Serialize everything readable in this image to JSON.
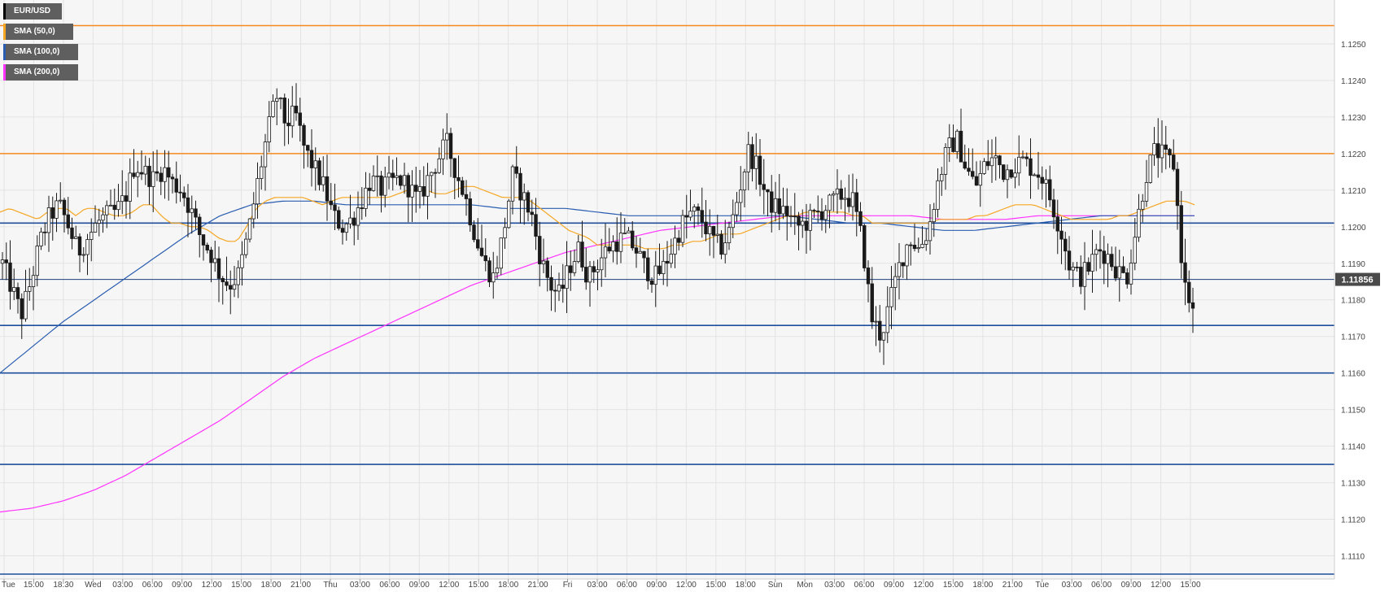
{
  "legend": [
    {
      "label": "EUR/USD",
      "color": "#000000"
    },
    {
      "label": "SMA (50,0)",
      "color": "#f5a623"
    },
    {
      "label": "SMA (100,0)",
      "color": "#2a5db0"
    },
    {
      "label": "SMA (200,0)",
      "color": "#ff33ff"
    }
  ],
  "price_tag": "1.11856",
  "chart_data": {
    "type": "candlestick",
    "symbol": "EUR/USD",
    "ylim": [
      1.1105,
      1.1258
    ],
    "y_ticks": [
      "1.1250",
      "1.1240",
      "1.1230",
      "1.1220",
      "1.1210",
      "1.1200",
      "1.1190",
      "1.1180",
      "1.1170",
      "1.1160",
      "1.1150",
      "1.1140",
      "1.1130",
      "1.1120",
      "1.1110"
    ],
    "x_ticks": [
      "Tue",
      "15:00",
      "18:30",
      "Wed",
      "03:00",
      "06:00",
      "09:00",
      "12:00",
      "15:00",
      "18:00",
      "21:00",
      "Thu",
      "03:00",
      "06:00",
      "09:00",
      "12:00",
      "15:00",
      "18:00",
      "21:00",
      "Fri",
      "03:00",
      "06:00",
      "09:00",
      "12:00",
      "15:00",
      "18:00",
      "Sun",
      "Mon",
      "03:00",
      "06:00",
      "09:00",
      "12:00",
      "15:00",
      "18:00",
      "21:00",
      "Tue",
      "03:00",
      "06:00",
      "09:00",
      "12:00",
      "15:00"
    ],
    "grid": true,
    "last_price": 1.11856,
    "horizontal_levels": [
      {
        "value": 1.1255,
        "color": "#f5891f"
      },
      {
        "value": 1.122,
        "color": "#f5891f"
      },
      {
        "value": 1.1201,
        "color": "#1f4e9c"
      },
      {
        "value": 1.1173,
        "color": "#1f4e9c"
      },
      {
        "value": 1.116,
        "color": "#1f4e9c"
      },
      {
        "value": 1.1135,
        "color": "#1f4e9c"
      },
      {
        "value": 1.1105,
        "color": "#1f4e9c"
      }
    ],
    "price_path": [
      1.119,
      1.1183,
      1.1176,
      1.1185,
      1.1196,
      1.1203,
      1.1206,
      1.12,
      1.1193,
      1.1197,
      1.1201,
      1.1203,
      1.1204,
      1.1208,
      1.1217,
      1.1215,
      1.1213,
      1.1216,
      1.1212,
      1.121,
      1.1204,
      1.1197,
      1.1193,
      1.1187,
      1.1184,
      1.1187,
      1.1198,
      1.1212,
      1.1225,
      1.1236,
      1.1228,
      1.1231,
      1.1221,
      1.1216,
      1.1211,
      1.1203,
      1.12,
      1.1202,
      1.1207,
      1.1213,
      1.121,
      1.1212,
      1.1213,
      1.1211,
      1.1207,
      1.1213,
      1.1218,
      1.1223,
      1.1215,
      1.1208,
      1.1198,
      1.119,
      1.1186,
      1.1198,
      1.1214,
      1.1209,
      1.1203,
      1.1191,
      1.1184,
      1.1181,
      1.1189,
      1.1194,
      1.1186,
      1.119,
      1.1194,
      1.1196,
      1.1197,
      1.1194,
      1.1189,
      1.1186,
      1.1189,
      1.1195,
      1.1201,
      1.1204,
      1.1202,
      1.1197,
      1.1194,
      1.1199,
      1.121,
      1.1221,
      1.1215,
      1.1207,
      1.1205,
      1.1204,
      1.12,
      1.1201,
      1.1203,
      1.1205,
      1.1207,
      1.1209,
      1.1207,
      1.1196,
      1.1175,
      1.117,
      1.118,
      1.119,
      1.1197,
      1.1194,
      1.1199,
      1.1212,
      1.1221,
      1.1224,
      1.1216,
      1.1211,
      1.1217,
      1.1219,
      1.1215,
      1.1217,
      1.1218,
      1.1216,
      1.1214,
      1.1207,
      1.1199,
      1.1189,
      1.1186,
      1.1189,
      1.1194,
      1.1192,
      1.1188,
      1.1186,
      1.12,
      1.1214,
      1.1221,
      1.1219,
      1.1217,
      1.1185,
      1.1177
    ],
    "sma50_path": [
      1.1204,
      1.1205,
      1.1204,
      1.1203,
      1.1202,
      1.1204,
      1.1205,
      1.1205,
      1.1203,
      1.1205,
      1.1205,
      1.1204,
      1.1203,
      1.1203,
      1.1204,
      1.1206,
      1.1206,
      1.1203,
      1.1201,
      1.1201,
      1.12,
      1.12,
      1.1199,
      1.1197,
      1.1196,
      1.1196,
      1.12,
      1.1205,
      1.1207,
      1.1208,
      1.1208,
      1.1208,
      1.1208,
      1.1207,
      1.1206,
      1.1207,
      1.1208,
      1.1208,
      1.1208,
      1.1208,
      1.1208,
      1.1208,
      1.1209,
      1.121,
      1.121,
      1.121,
      1.1209,
      1.1209,
      1.121,
      1.1211,
      1.1211,
      1.121,
      1.1209,
      1.1208,
      1.1208,
      1.1208,
      1.1207,
      1.1205,
      1.1203,
      1.1201,
      1.1199,
      1.1198,
      1.1197,
      1.1195,
      1.1195,
      1.1195,
      1.1195,
      1.1195,
      1.1194,
      1.1194,
      1.1194,
      1.1195,
      1.1195,
      1.1196,
      1.1196,
      1.1197,
      1.1198,
      1.1198,
      1.1198,
      1.1199,
      1.12,
      1.1201,
      1.1202,
      1.1203,
      1.1203,
      1.1204,
      1.1204,
      1.1204,
      1.1204,
      1.1204,
      1.1203,
      1.1203,
      1.1201,
      1.1201,
      1.1201,
      1.1201,
      1.1201,
      1.1201,
      1.1201,
      1.1202,
      1.1202,
      1.1202,
      1.1202,
      1.1203,
      1.1203,
      1.1204,
      1.1205,
      1.1206,
      1.1206,
      1.1206,
      1.1205,
      1.1204,
      1.1203,
      1.1202,
      1.1202,
      1.1202,
      1.1202,
      1.1202,
      1.1203,
      1.1203,
      1.1204,
      1.1205,
      1.1206,
      1.1207,
      1.1207,
      1.1207,
      1.1206
    ],
    "sma100_path": [
      1.116,
      1.1167,
      1.1174,
      1.118,
      1.1186,
      1.1192,
      1.1198,
      1.1203,
      1.1206,
      1.1207,
      1.1207,
      1.1206,
      1.1206,
      1.1206,
      1.1206,
      1.1206,
      1.1205,
      1.1205,
      1.1205,
      1.1204,
      1.1203,
      1.1203,
      1.1203,
      1.1203,
      1.1203,
      1.1203,
      1.1202,
      1.1201,
      1.1201,
      1.12,
      1.1199,
      1.1199,
      1.12,
      1.1201,
      1.1202,
      1.1203,
      1.1203,
      1.1203,
      1.1203
    ],
    "sma200_path": [
      1.1122,
      1.1123,
      1.1125,
      1.1128,
      1.1132,
      1.1137,
      1.1142,
      1.1147,
      1.1153,
      1.1159,
      1.1164,
      1.1168,
      1.1172,
      1.1176,
      1.118,
      1.1184,
      1.1187,
      1.119,
      1.1193,
      1.1195,
      1.1197,
      1.1199,
      1.12,
      1.1201,
      1.1202,
      1.1203,
      1.1203,
      1.1203,
      1.1203,
      1.1203,
      1.1202,
      1.1202,
      1.1202,
      1.1203,
      1.1203,
      1.1203,
      1.1203,
      1.1203,
      1.1203
    ]
  }
}
